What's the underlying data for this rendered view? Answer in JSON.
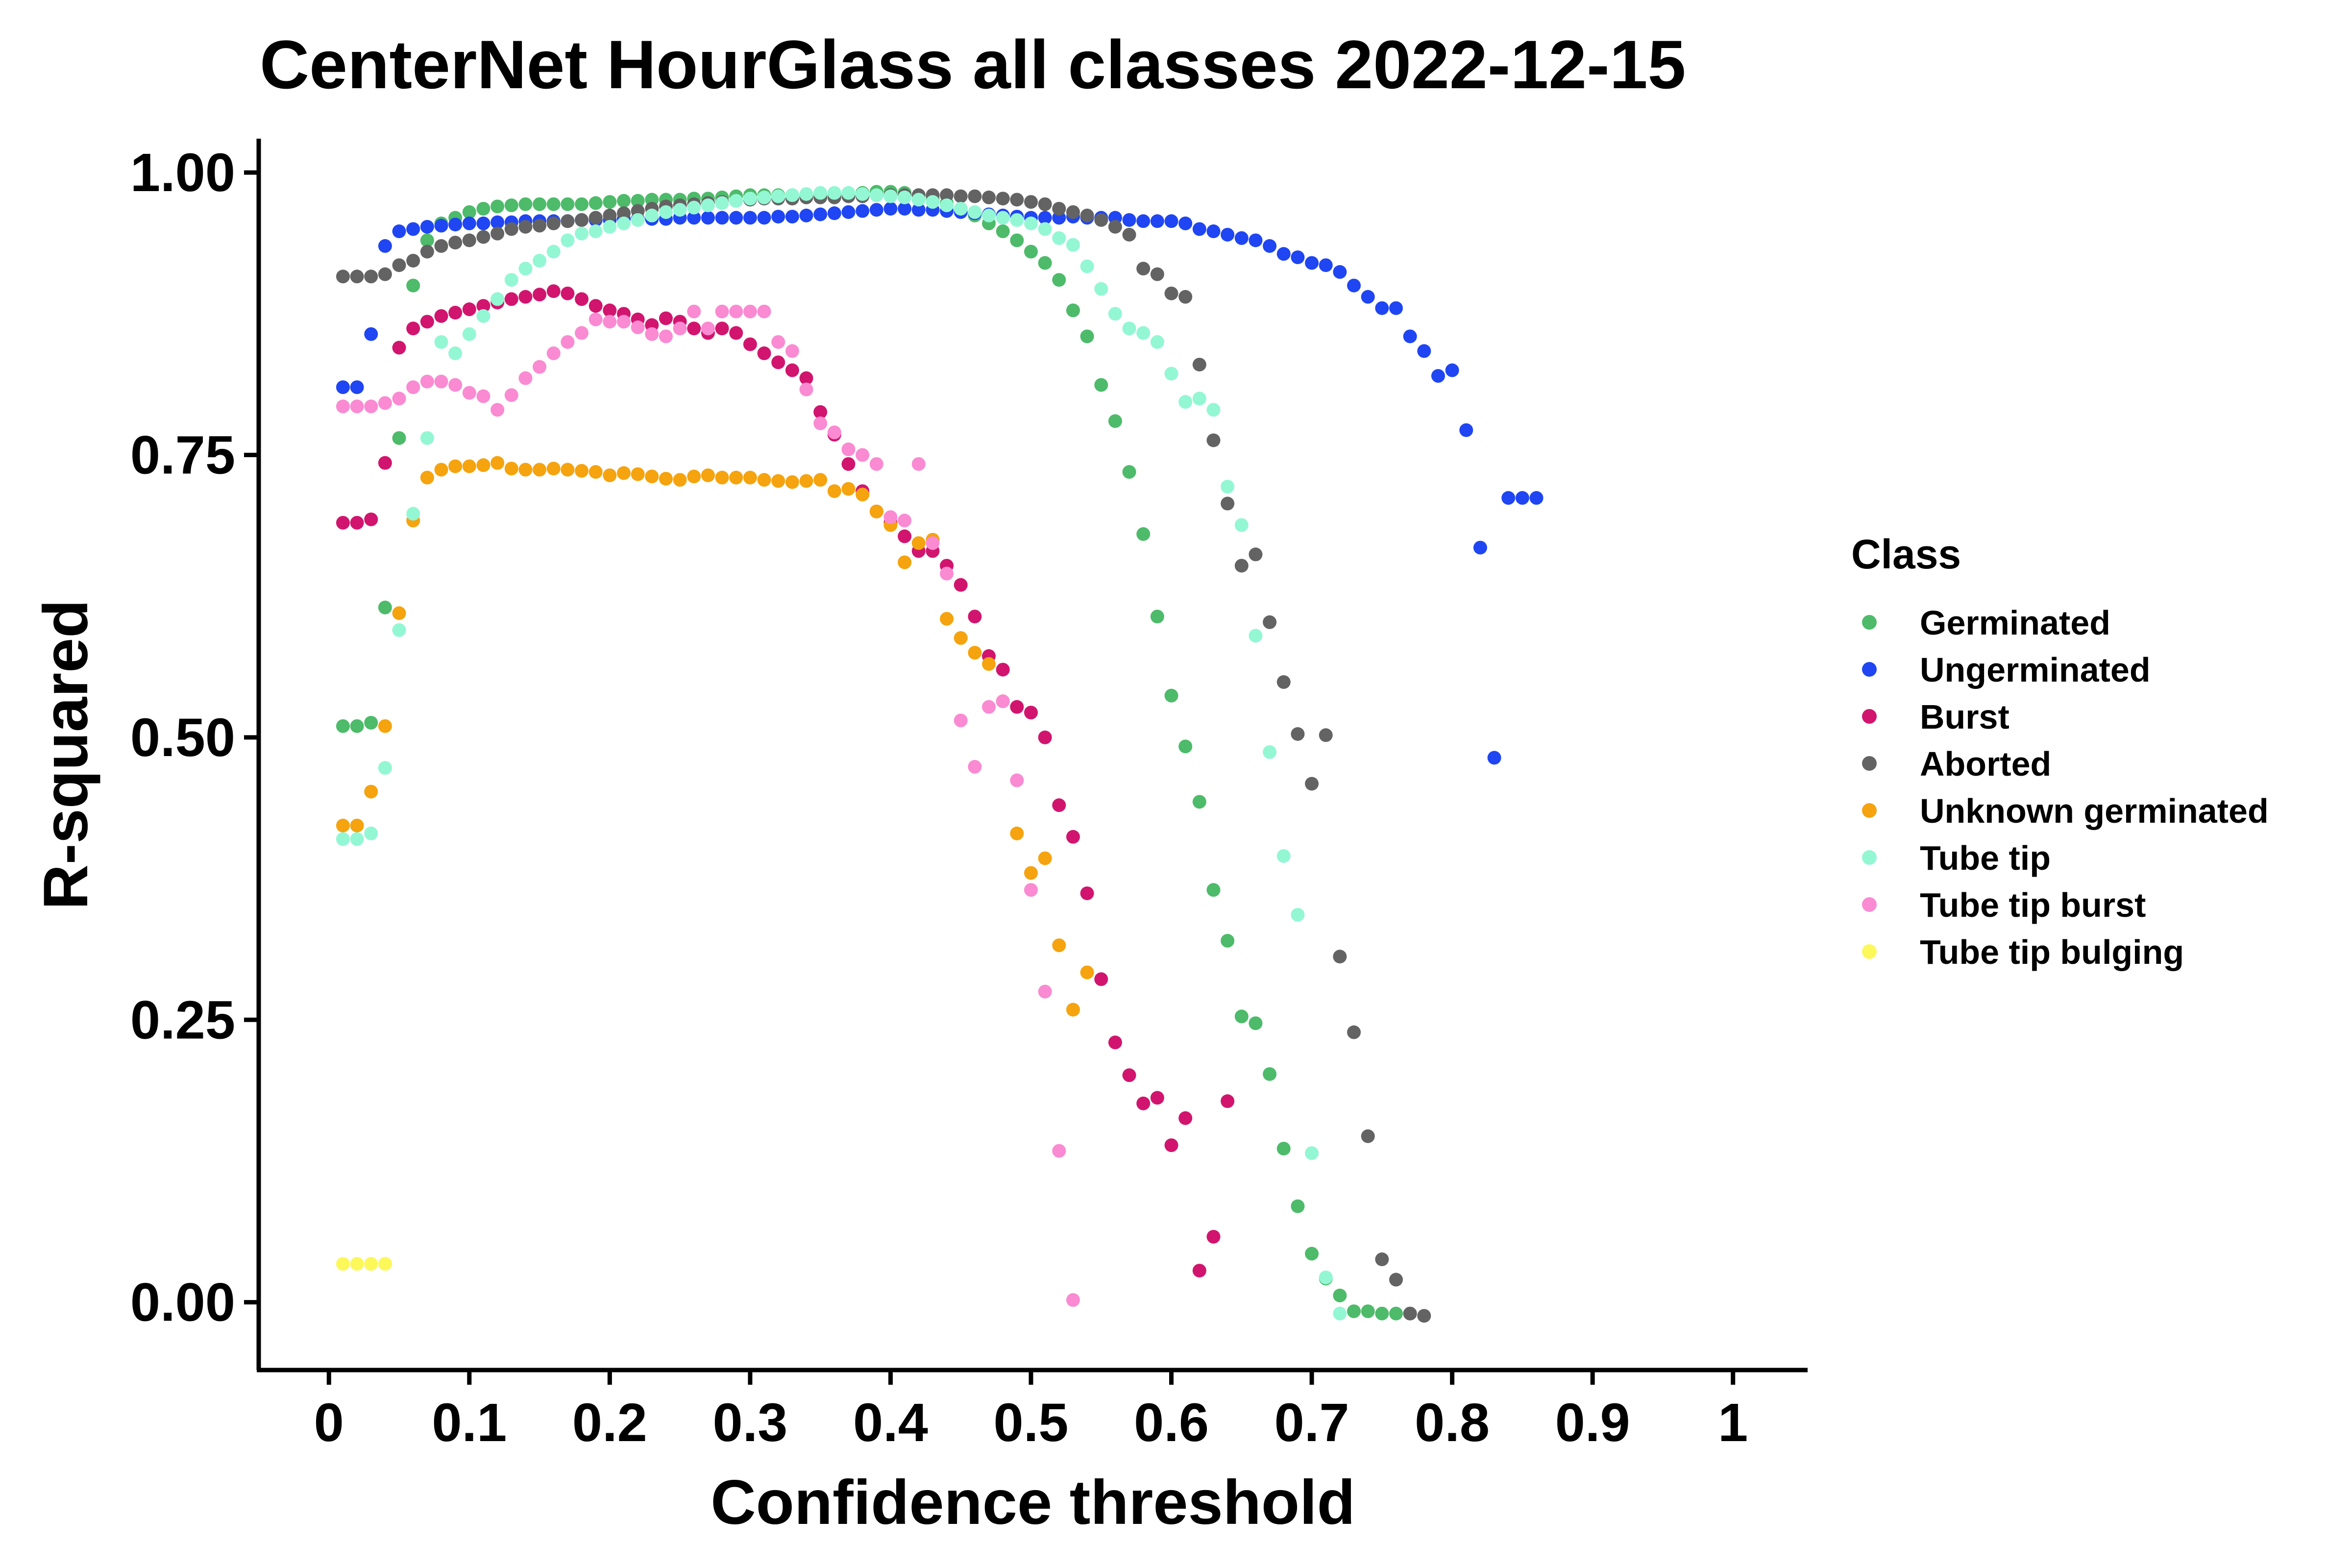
{
  "chart_data": {
    "type": "scatter",
    "title": "CenterNet HourGlass all classes 2022-12-15",
    "xlabel": "Confidence threshold",
    "ylabel": "R-squared",
    "xlim": [
      -0.05,
      1.05
    ],
    "ylim": [
      -0.06,
      1.03
    ],
    "x_ticks": [
      0,
      0.1,
      0.2,
      0.3,
      0.4,
      0.5,
      0.6,
      0.7,
      0.8,
      0.9,
      1
    ],
    "x_tick_labels": [
      "0",
      "0.1",
      "0.2",
      "0.3",
      "0.4",
      "0.5",
      "0.6",
      "0.7",
      "0.8",
      "0.9",
      "1"
    ],
    "y_ticks": [
      0,
      0.25,
      0.5,
      0.75,
      1
    ],
    "y_tick_labels": [
      "0.00",
      "0.25",
      "0.50",
      "0.75",
      "1.00"
    ],
    "grid": false,
    "legend": {
      "title": "Class",
      "position": "right"
    },
    "series": [
      {
        "name": "Germinated",
        "color": "#4DBB6A",
        "x": [
          0.01,
          0.02,
          0.03,
          0.04,
          0.05,
          0.06,
          0.07,
          0.08,
          0.09,
          0.1,
          0.11,
          0.12,
          0.13,
          0.14,
          0.15,
          0.16,
          0.17,
          0.18,
          0.19,
          0.2,
          0.21,
          0.22,
          0.23,
          0.24,
          0.25,
          0.26,
          0.27,
          0.28,
          0.29,
          0.3,
          0.31,
          0.32,
          0.33,
          0.34,
          0.35,
          0.36,
          0.37,
          0.38,
          0.39,
          0.4,
          0.41,
          0.42,
          0.43,
          0.44,
          0.45,
          0.46,
          0.47,
          0.48,
          0.49,
          0.5,
          0.51,
          0.52,
          0.53,
          0.54,
          0.55,
          0.56,
          0.57,
          0.58,
          0.59,
          0.6,
          0.61,
          0.62,
          0.63,
          0.64,
          0.65,
          0.66,
          0.67,
          0.68,
          0.69,
          0.7,
          0.71,
          0.72,
          0.73,
          0.74,
          0.75,
          0.76,
          0.77
        ],
        "y": [
          0.51,
          0.51,
          0.513,
          0.615,
          0.765,
          0.9,
          0.94,
          0.955,
          0.96,
          0.965,
          0.968,
          0.97,
          0.971,
          0.972,
          0.972,
          0.972,
          0.972,
          0.972,
          0.973,
          0.974,
          0.975,
          0.975,
          0.976,
          0.976,
          0.976,
          0.977,
          0.977,
          0.978,
          0.979,
          0.98,
          0.98,
          0.98,
          0.98,
          0.98,
          0.98,
          0.981,
          0.981,
          0.982,
          0.983,
          0.983,
          0.982,
          0.98,
          0.977,
          0.973,
          0.968,
          0.962,
          0.955,
          0.948,
          0.94,
          0.93,
          0.92,
          0.905,
          0.878,
          0.855,
          0.812,
          0.78,
          0.735,
          0.68,
          0.607,
          0.537,
          0.492,
          0.443,
          0.365,
          0.32,
          0.253,
          0.247,
          0.202,
          0.136,
          0.085,
          0.043,
          0.021,
          0.006,
          -0.008,
          -0.008,
          -0.01,
          -0.01,
          -0.01
        ]
      },
      {
        "name": "Ungerminated",
        "color": "#1F46F2",
        "x": [
          0.01,
          0.02,
          0.03,
          0.04,
          0.05,
          0.06,
          0.07,
          0.08,
          0.09,
          0.1,
          0.11,
          0.12,
          0.13,
          0.14,
          0.15,
          0.16,
          0.17,
          0.18,
          0.19,
          0.2,
          0.21,
          0.22,
          0.23,
          0.24,
          0.25,
          0.26,
          0.27,
          0.28,
          0.29,
          0.3,
          0.31,
          0.32,
          0.33,
          0.34,
          0.35,
          0.36,
          0.37,
          0.38,
          0.39,
          0.4,
          0.41,
          0.42,
          0.43,
          0.44,
          0.45,
          0.46,
          0.47,
          0.48,
          0.49,
          0.5,
          0.51,
          0.52,
          0.53,
          0.54,
          0.55,
          0.56,
          0.57,
          0.58,
          0.59,
          0.6,
          0.61,
          0.62,
          0.63,
          0.64,
          0.65,
          0.66,
          0.67,
          0.68,
          0.69,
          0.7,
          0.71,
          0.72,
          0.73,
          0.74,
          0.75,
          0.76,
          0.77,
          0.78,
          0.79,
          0.8,
          0.81,
          0.82,
          0.83,
          0.84,
          0.85,
          0.86
        ],
        "y": [
          0.81,
          0.81,
          0.857,
          0.935,
          0.948,
          0.95,
          0.952,
          0.953,
          0.954,
          0.955,
          0.955,
          0.956,
          0.956,
          0.957,
          0.957,
          0.957,
          0.957,
          0.958,
          0.958,
          0.958,
          0.959,
          0.959,
          0.959,
          0.959,
          0.96,
          0.96,
          0.96,
          0.96,
          0.96,
          0.96,
          0.96,
          0.961,
          0.961,
          0.962,
          0.963,
          0.964,
          0.965,
          0.966,
          0.967,
          0.968,
          0.968,
          0.967,
          0.967,
          0.966,
          0.965,
          0.964,
          0.963,
          0.962,
          0.961,
          0.96,
          0.96,
          0.96,
          0.961,
          0.96,
          0.96,
          0.96,
          0.958,
          0.957,
          0.957,
          0.957,
          0.955,
          0.95,
          0.948,
          0.945,
          0.942,
          0.94,
          0.935,
          0.928,
          0.925,
          0.92,
          0.918,
          0.912,
          0.9,
          0.89,
          0.88,
          0.88,
          0.855,
          0.842,
          0.82,
          0.825,
          0.772,
          0.668,
          0.482,
          0.712,
          0.712,
          0.712
        ]
      },
      {
        "name": "Burst",
        "color": "#D1156E",
        "x": [
          0.01,
          0.02,
          0.03,
          0.04,
          0.05,
          0.06,
          0.07,
          0.08,
          0.09,
          0.1,
          0.11,
          0.12,
          0.13,
          0.14,
          0.15,
          0.16,
          0.17,
          0.18,
          0.19,
          0.2,
          0.21,
          0.22,
          0.23,
          0.24,
          0.25,
          0.26,
          0.27,
          0.28,
          0.29,
          0.3,
          0.31,
          0.32,
          0.33,
          0.34,
          0.35,
          0.36,
          0.37,
          0.38,
          0.39,
          0.4,
          0.41,
          0.42,
          0.43,
          0.44,
          0.45,
          0.46,
          0.47,
          0.48,
          0.49,
          0.5,
          0.51,
          0.52,
          0.53,
          0.54,
          0.55,
          0.56,
          0.57,
          0.58,
          0.59,
          0.6,
          0.61,
          0.62,
          0.63,
          0.64
        ],
        "y": [
          0.69,
          0.69,
          0.693,
          0.743,
          0.845,
          0.862,
          0.868,
          0.873,
          0.876,
          0.879,
          0.882,
          0.885,
          0.888,
          0.89,
          0.892,
          0.895,
          0.893,
          0.888,
          0.882,
          0.878,
          0.875,
          0.87,
          0.865,
          0.871,
          0.868,
          0.862,
          0.858,
          0.862,
          0.858,
          0.848,
          0.84,
          0.832,
          0.825,
          0.818,
          0.788,
          0.768,
          0.742,
          0.718,
          0.7,
          0.69,
          0.678,
          0.665,
          0.665,
          0.652,
          0.635,
          0.607,
          0.572,
          0.56,
          0.527,
          0.522,
          0.5,
          0.44,
          0.412,
          0.362,
          0.286,
          0.23,
          0.201,
          0.176,
          0.181,
          0.139,
          0.163,
          0.028,
          0.058,
          0.178
        ]
      },
      {
        "name": "Aborted",
        "color": "#636363",
        "x": [
          0.01,
          0.02,
          0.03,
          0.04,
          0.05,
          0.06,
          0.07,
          0.08,
          0.09,
          0.1,
          0.11,
          0.12,
          0.13,
          0.14,
          0.15,
          0.16,
          0.17,
          0.18,
          0.19,
          0.2,
          0.21,
          0.22,
          0.23,
          0.24,
          0.25,
          0.26,
          0.27,
          0.28,
          0.29,
          0.3,
          0.31,
          0.32,
          0.33,
          0.34,
          0.35,
          0.36,
          0.37,
          0.38,
          0.39,
          0.4,
          0.41,
          0.42,
          0.43,
          0.44,
          0.45,
          0.46,
          0.47,
          0.48,
          0.49,
          0.5,
          0.51,
          0.52,
          0.53,
          0.54,
          0.55,
          0.56,
          0.57,
          0.58,
          0.59,
          0.6,
          0.61,
          0.62,
          0.63,
          0.64,
          0.65,
          0.66,
          0.67,
          0.68,
          0.69,
          0.7,
          0.71,
          0.72,
          0.73,
          0.74,
          0.75,
          0.76,
          0.77,
          0.78
        ],
        "y": [
          0.908,
          0.908,
          0.908,
          0.91,
          0.918,
          0.922,
          0.93,
          0.935,
          0.938,
          0.94,
          0.943,
          0.946,
          0.95,
          0.952,
          0.953,
          0.955,
          0.957,
          0.958,
          0.96,
          0.962,
          0.964,
          0.966,
          0.968,
          0.97,
          0.971,
          0.972,
          0.973,
          0.974,
          0.975,
          0.976,
          0.977,
          0.977,
          0.977,
          0.978,
          0.978,
          0.978,
          0.979,
          0.979,
          0.98,
          0.98,
          0.98,
          0.98,
          0.98,
          0.98,
          0.979,
          0.979,
          0.978,
          0.977,
          0.976,
          0.974,
          0.972,
          0.968,
          0.965,
          0.962,
          0.958,
          0.952,
          0.945,
          0.915,
          0.91,
          0.893,
          0.89,
          0.83,
          0.763,
          0.707,
          0.652,
          0.662,
          0.602,
          0.549,
          0.503,
          0.459,
          0.502,
          0.306,
          0.239,
          0.147,
          0.038,
          0.02,
          -0.01,
          -0.012
        ]
      },
      {
        "name": "Unknown germinated",
        "color": "#F5A30E",
        "x": [
          0.01,
          0.02,
          0.03,
          0.04,
          0.05,
          0.06,
          0.07,
          0.08,
          0.09,
          0.1,
          0.11,
          0.12,
          0.13,
          0.14,
          0.15,
          0.16,
          0.17,
          0.18,
          0.19,
          0.2,
          0.21,
          0.22,
          0.23,
          0.24,
          0.25,
          0.26,
          0.27,
          0.28,
          0.29,
          0.3,
          0.31,
          0.32,
          0.33,
          0.34,
          0.35,
          0.36,
          0.37,
          0.38,
          0.39,
          0.4,
          0.41,
          0.42,
          0.43,
          0.44,
          0.45,
          0.46,
          0.47,
          0.48,
          0.49,
          0.5,
          0.51,
          0.52,
          0.53,
          0.54
        ],
        "y": [
          0.422,
          0.422,
          0.452,
          0.51,
          0.61,
          0.692,
          0.73,
          0.737,
          0.74,
          0.74,
          0.741,
          0.743,
          0.738,
          0.737,
          0.737,
          0.738,
          0.737,
          0.736,
          0.735,
          0.732,
          0.734,
          0.733,
          0.731,
          0.729,
          0.728,
          0.731,
          0.732,
          0.73,
          0.73,
          0.73,
          0.728,
          0.727,
          0.726,
          0.727,
          0.728,
          0.718,
          0.72,
          0.715,
          0.7,
          0.688,
          0.655,
          0.672,
          0.675,
          0.605,
          0.588,
          0.575,
          0.565,
          0.532,
          0.415,
          0.38,
          0.393,
          0.316,
          0.259,
          0.292
        ]
      },
      {
        "name": "Tube tip",
        "color": "#93F7D4",
        "x": [
          0.01,
          0.02,
          0.03,
          0.04,
          0.05,
          0.06,
          0.07,
          0.08,
          0.09,
          0.1,
          0.11,
          0.12,
          0.13,
          0.14,
          0.15,
          0.16,
          0.17,
          0.18,
          0.19,
          0.2,
          0.21,
          0.22,
          0.23,
          0.24,
          0.25,
          0.26,
          0.27,
          0.28,
          0.29,
          0.3,
          0.31,
          0.32,
          0.33,
          0.34,
          0.35,
          0.36,
          0.37,
          0.38,
          0.39,
          0.4,
          0.41,
          0.42,
          0.43,
          0.44,
          0.45,
          0.46,
          0.47,
          0.48,
          0.49,
          0.5,
          0.51,
          0.52,
          0.53,
          0.54,
          0.55,
          0.56,
          0.57,
          0.58,
          0.59,
          0.6,
          0.61,
          0.62,
          0.63,
          0.64,
          0.65,
          0.66,
          0.67,
          0.68,
          0.69,
          0.7,
          0.71,
          0.72
        ],
        "y": [
          0.41,
          0.41,
          0.415,
          0.473,
          0.595,
          0.698,
          0.765,
          0.85,
          0.84,
          0.857,
          0.873,
          0.888,
          0.905,
          0.915,
          0.922,
          0.93,
          0.94,
          0.946,
          0.948,
          0.952,
          0.955,
          0.958,
          0.962,
          0.965,
          0.967,
          0.969,
          0.971,
          0.973,
          0.975,
          0.977,
          0.978,
          0.979,
          0.98,
          0.981,
          0.982,
          0.982,
          0.982,
          0.981,
          0.98,
          0.979,
          0.978,
          0.976,
          0.974,
          0.971,
          0.968,
          0.965,
          0.962,
          0.96,
          0.958,
          0.955,
          0.95,
          0.942,
          0.936,
          0.917,
          0.897,
          0.875,
          0.862,
          0.858,
          0.85,
          0.822,
          0.797,
          0.8,
          0.79,
          0.722,
          0.688,
          0.59,
          0.487,
          0.395,
          0.343,
          0.132,
          0.022,
          -0.01
        ]
      },
      {
        "name": "Tube tip burst",
        "color": "#FA8AD2",
        "x": [
          0.01,
          0.02,
          0.03,
          0.04,
          0.05,
          0.06,
          0.07,
          0.08,
          0.09,
          0.1,
          0.11,
          0.12,
          0.13,
          0.14,
          0.15,
          0.16,
          0.17,
          0.18,
          0.19,
          0.2,
          0.21,
          0.22,
          0.23,
          0.24,
          0.25,
          0.26,
          0.27,
          0.28,
          0.29,
          0.3,
          0.31,
          0.32,
          0.33,
          0.34,
          0.35,
          0.36,
          0.37,
          0.38,
          0.39,
          0.4,
          0.41,
          0.42,
          0.43,
          0.44,
          0.45,
          0.46,
          0.47,
          0.48,
          0.49,
          0.5,
          0.51,
          0.52,
          0.53
        ],
        "y": [
          0.793,
          0.793,
          0.793,
          0.796,
          0.8,
          0.81,
          0.815,
          0.815,
          0.812,
          0.805,
          0.802,
          0.79,
          0.803,
          0.818,
          0.828,
          0.84,
          0.85,
          0.858,
          0.87,
          0.868,
          0.868,
          0.863,
          0.857,
          0.855,
          0.862,
          0.877,
          0.862,
          0.877,
          0.877,
          0.877,
          0.877,
          0.85,
          0.842,
          0.808,
          0.778,
          0.77,
          0.755,
          0.75,
          0.742,
          0.695,
          0.692,
          0.742,
          0.672,
          0.645,
          0.515,
          0.474,
          0.527,
          0.532,
          0.462,
          0.365,
          0.275,
          0.134,
          0.002
        ]
      },
      {
        "name": "Tube tip bulging",
        "color": "#FCF85A",
        "x": [
          0.01,
          0.02,
          0.03,
          0.04
        ],
        "y": [
          0.034,
          0.034,
          0.034,
          0.034
        ]
      }
    ]
  }
}
